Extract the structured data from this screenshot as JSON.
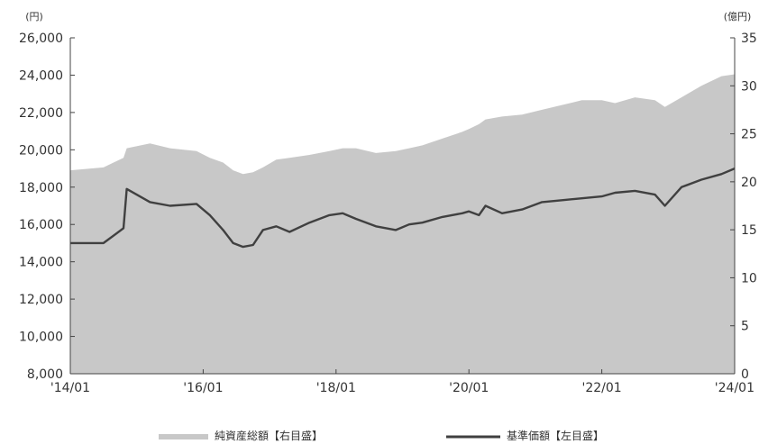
{
  "chart_data": {
    "type": "line",
    "left_unit": "(円)",
    "right_unit": "(億円)",
    "x_ticks": [
      "'14/01",
      "'16/01",
      "'18/01",
      "'20/01",
      "'22/01",
      "'24/01"
    ],
    "left_axis": {
      "ylim": [
        8000,
        26000
      ],
      "ticks": [
        "8,000",
        "10,000",
        "12,000",
        "14,000",
        "16,000",
        "18,000",
        "20,000",
        "22,000",
        "24,000",
        "26,000"
      ]
    },
    "right_axis": {
      "ylim": [
        0,
        35
      ],
      "ticks": [
        "0",
        "5",
        "10",
        "15",
        "20",
        "25",
        "30",
        "35"
      ]
    },
    "grid": false,
    "legend_position": "bottom",
    "x": [
      2014.0,
      2014.5,
      2014.8,
      2014.85,
      2015.2,
      2015.5,
      2015.9,
      2016.1,
      2016.3,
      2016.45,
      2016.6,
      2016.75,
      2016.9,
      2017.1,
      2017.3,
      2017.6,
      2017.9,
      2018.1,
      2018.3,
      2018.6,
      2018.9,
      2019.1,
      2019.3,
      2019.6,
      2019.9,
      2020.0,
      2020.15,
      2020.25,
      2020.5,
      2020.8,
      2021.1,
      2021.4,
      2021.7,
      2022.0,
      2022.2,
      2022.5,
      2022.8,
      2022.95,
      2023.2,
      2023.5,
      2023.8,
      2024.0
    ],
    "series": [
      {
        "name": "純資産総額【右目盛】",
        "axis": "right",
        "type": "area",
        "color": "#c8c8c8",
        "values": [
          21.2,
          21.5,
          22.5,
          23.5,
          24.0,
          23.5,
          23.2,
          22.5,
          22.0,
          21.2,
          20.8,
          21.0,
          21.5,
          22.3,
          22.5,
          22.8,
          23.2,
          23.5,
          23.5,
          23.0,
          23.2,
          23.5,
          23.8,
          24.5,
          25.2,
          25.5,
          26.0,
          26.5,
          26.8,
          27.0,
          27.5,
          28.0,
          28.5,
          28.5,
          28.2,
          28.8,
          28.5,
          27.8,
          28.8,
          30.0,
          31.0,
          31.2
        ]
      },
      {
        "name": "基準価額【左目盛】",
        "axis": "left",
        "type": "line",
        "color": "#404040",
        "values": [
          15000,
          15000,
          15800,
          17900,
          17200,
          17000,
          17100,
          16500,
          15700,
          15000,
          14800,
          14900,
          15700,
          15900,
          15600,
          16100,
          16500,
          16600,
          16300,
          15900,
          15700,
          16000,
          16100,
          16400,
          16600,
          16700,
          16500,
          17000,
          16600,
          16800,
          17200,
          17300,
          17400,
          17500,
          17700,
          17800,
          17600,
          17000,
          18000,
          18400,
          18700,
          19000
        ]
      }
    ]
  }
}
